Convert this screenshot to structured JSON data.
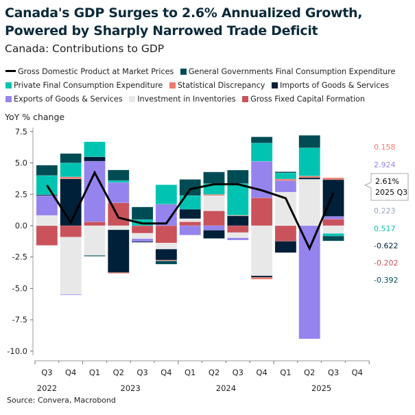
{
  "title": "Canada's GDP Surges to 2.6% Annualized Growth, Powered by Sharply Narrowed Trade Deficit",
  "subtitle": "Canada: Contributions to GDP",
  "source": "Source: Convera, Macrobond",
  "chart_data": {
    "type": "bar",
    "stacked": true,
    "ylabel": "YoY % change",
    "ylim": [
      -10,
      7.5
    ],
    "yticks": [
      "7.5",
      "5.0",
      "2.5",
      "0.0",
      "-2.5",
      "-5.0",
      "-7.5",
      "-10.0"
    ],
    "yticks_values": [
      7.5,
      5,
      2.5,
      0,
      -2.5,
      -5,
      -7.5,
      -10
    ],
    "categories": [
      "Q3",
      "Q4",
      "Q1",
      "Q2",
      "Q3",
      "Q4",
      "Q1",
      "Q2",
      "Q3",
      "Q4",
      "Q1",
      "Q2",
      "Q3",
      "Q4"
    ],
    "years": [
      {
        "label": "2022",
        "at": 0
      },
      {
        "label": "2023",
        "at": 3.5
      },
      {
        "label": "2024",
        "at": 7.5
      },
      {
        "label": "2025",
        "at": 11.5
      }
    ],
    "legend_position": "top",
    "grid": false,
    "series": [
      {
        "name": "Gross Fixed Capital Formation",
        "color": "#c9525b",
        "values": [
          -1.57,
          -0.91,
          0.31,
          1.82,
          -0.6,
          -1.38,
          0.31,
          1.18,
          -0.55,
          2.22,
          -1.24,
          0,
          0.517,
          null
        ]
      },
      {
        "name": "Investment in Inventories",
        "color": "#e8e8e8",
        "values": [
          0.82,
          -4.57,
          -2.37,
          -0.33,
          -0.44,
          -0.49,
          0.25,
          1.22,
          -0.42,
          -3.99,
          2.68,
          3.7,
          -0.622,
          null
        ]
      },
      {
        "name": "Exports of Goods & Services",
        "color": "#9583ee",
        "values": [
          1.58,
          -0.05,
          4.83,
          1.62,
          -0.22,
          1.71,
          -0.75,
          -0.36,
          -0.18,
          2.91,
          0.91,
          -9.02,
          0.223,
          null
        ]
      },
      {
        "name": "Imports of Goods & Services",
        "color": "#001f38",
        "values": [
          0.07,
          3.73,
          0.35,
          -3.41,
          -0.07,
          -0.87,
          0.75,
          -0.66,
          0.78,
          -0.13,
          -0.91,
          0.13,
          2.924,
          null
        ]
      },
      {
        "name": "Statistical Discrepancy",
        "color": "#ee7a6e",
        "values": [
          0,
          0.16,
          0,
          -0.07,
          0,
          -0.07,
          0,
          0.09,
          0.05,
          -0.15,
          0.13,
          0.13,
          0.158,
          null
        ]
      },
      {
        "name": "Private Final Consumption Expenditure",
        "color": "#00c4b1",
        "values": [
          1.53,
          1.11,
          1.2,
          0.16,
          0.49,
          1.55,
          1.09,
          0.86,
          2.53,
          1.46,
          0.49,
          2.24,
          -0.202,
          null
        ]
      },
      {
        "name": "General Governments Final Consumption Expenditure",
        "color": "#004c55",
        "values": [
          0.82,
          0.75,
          -0.07,
          0.84,
          1.0,
          -0.26,
          1.29,
          0.93,
          1.07,
          0.49,
          0.09,
          1.0,
          -0.392,
          null
        ]
      }
    ],
    "line": {
      "name": "Gross Domestic Product at Market Prices",
      "color": "#000000",
      "values": [
        3.22,
        0.25,
        4.23,
        0.64,
        0.18,
        0.18,
        2.91,
        3.3,
        3.3,
        2.82,
        2.19,
        -1.82,
        2.61,
        null
      ]
    },
    "legend_order": [
      "Gross Domestic Product at Market Prices",
      "General Governments Final Consumption Expenditure",
      "Private Final Consumption Expenditure",
      "Statistical Discrepancy",
      "Imports of Goods & Services",
      "Exports of Goods & Services",
      "Investment in Inventories",
      "Gross Fixed Capital Formation"
    ],
    "last_value_labels": [
      {
        "text": "0.158",
        "color": "#ee7a6e"
      },
      {
        "text": "2.924",
        "color": "#9583ee"
      },
      {
        "text": "0.223",
        "color": "#9aa3bd"
      },
      {
        "text": "0.517",
        "color": "#00c4b1"
      },
      {
        "text": "-0.622",
        "color": "#001f38"
      },
      {
        "text": "-0.202",
        "color": "#c9525b"
      },
      {
        "text": "-0.392",
        "color": "#004c55"
      }
    ],
    "tooltip": {
      "value": "2.61%",
      "period": "2025 Q3"
    }
  }
}
